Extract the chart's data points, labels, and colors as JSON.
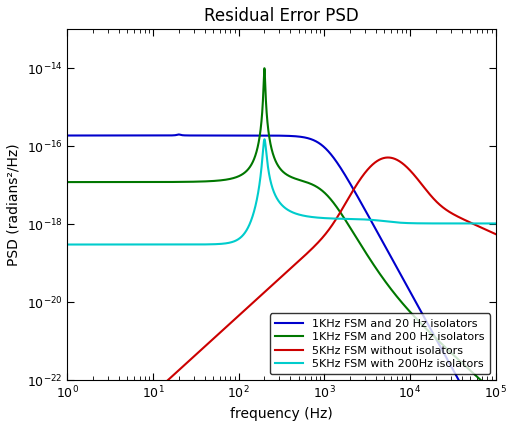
{
  "title": "Residual Error PSD",
  "xlabel": "frequency (Hz)",
  "ylabel": "PSD (radians²/Hz)",
  "xlim_log": [
    0,
    5
  ],
  "ylim_log": [
    -22,
    -13
  ],
  "background_color": "#ffffff",
  "legend_entries": [
    "1KHz FSM and 20 Hz isolators",
    "1KHz FSM and 200 Hz isolators",
    "5KHz FSM without isolators",
    "5KHz FSM with 200Hz isolators"
  ],
  "line_colors": [
    "#0000cc",
    "#007700",
    "#cc0000",
    "#00cccc"
  ],
  "line_width": 1.5,
  "title_fontsize": 12,
  "label_fontsize": 10,
  "tick_fontsize": 9,
  "legend_fontsize": 8
}
